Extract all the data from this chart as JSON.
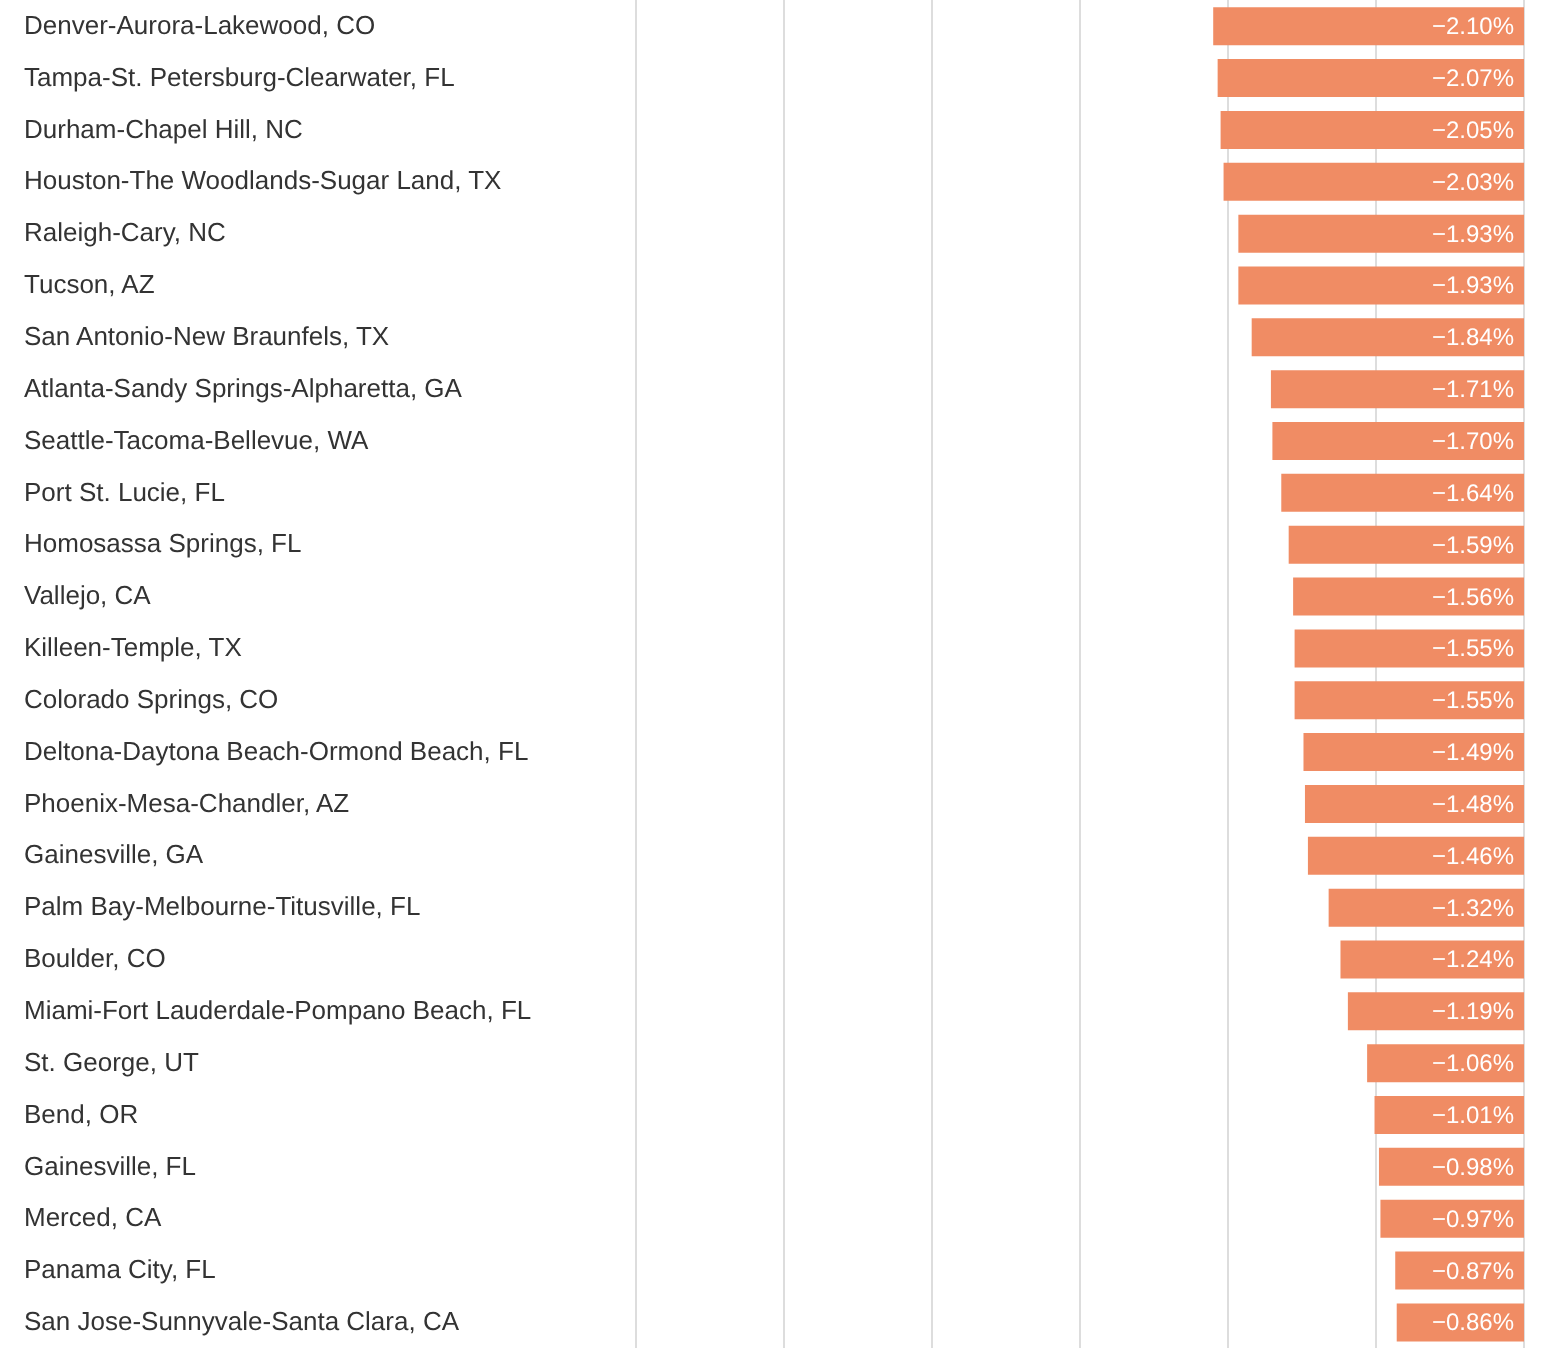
{
  "chart_data": {
    "type": "bar",
    "orientation": "horizontal",
    "categories": [
      "Denver-Aurora-Lakewood, CO",
      "Tampa-St. Petersburg-Clearwater, FL",
      "Durham-Chapel Hill, NC",
      "Houston-The Woodlands-Sugar Land, TX",
      "Raleigh-Cary, NC",
      "Tucson, AZ",
      "San Antonio-New Braunfels, TX",
      "Atlanta-Sandy Springs-Alpharetta, GA",
      "Seattle-Tacoma-Bellevue, WA",
      "Port St. Lucie, FL",
      "Homosassa Springs, FL",
      "Vallejo, CA",
      "Killeen-Temple, TX",
      "Colorado Springs, CO",
      "Deltona-Daytona Beach-Ormond Beach, FL",
      "Phoenix-Mesa-Chandler, AZ",
      "Gainesville, GA",
      "Palm Bay-Melbourne-Titusville, FL",
      "Boulder, CO",
      "Miami-Fort Lauderdale-Pompano Beach, FL",
      "St. George, UT",
      "Bend, OR",
      "Gainesville, FL",
      "Merced, CA",
      "Panama City, FL",
      "San Jose-Sunnyvale-Santa Clara, CA"
    ],
    "values": [
      -2.1,
      -2.07,
      -2.05,
      -2.03,
      -1.93,
      -1.93,
      -1.84,
      -1.71,
      -1.7,
      -1.64,
      -1.59,
      -1.56,
      -1.55,
      -1.55,
      -1.49,
      -1.48,
      -1.46,
      -1.32,
      -1.24,
      -1.19,
      -1.06,
      -1.01,
      -0.98,
      -0.97,
      -0.87,
      -0.86
    ],
    "value_labels": [
      "−2.10%",
      "−2.07%",
      "−2.05%",
      "−2.03%",
      "−1.93%",
      "−1.93%",
      "−1.84%",
      "−1.71%",
      "−1.70%",
      "−1.64%",
      "−1.59%",
      "−1.56%",
      "−1.55%",
      "−1.55%",
      "−1.49%",
      "−1.48%",
      "−1.46%",
      "−1.32%",
      "−1.24%",
      "−1.19%",
      "−1.06%",
      "−1.01%",
      "−0.98%",
      "−0.97%",
      "−0.87%",
      "−0.86%"
    ],
    "color": "#f08c64",
    "xlim": [
      -6,
      0
    ],
    "xticks": [
      {
        "value": -6,
        "label": null
      },
      {
        "value": -5,
        "label": null
      },
      {
        "value": -4,
        "label": null
      },
      {
        "value": -3,
        "label": null
      },
      {
        "value": -2,
        "label": null
      },
      {
        "value": -1,
        "label": null
      },
      {
        "value": 0,
        "label": null
      }
    ],
    "grid": "x",
    "tick_labels": "y",
    "legend": false
  }
}
